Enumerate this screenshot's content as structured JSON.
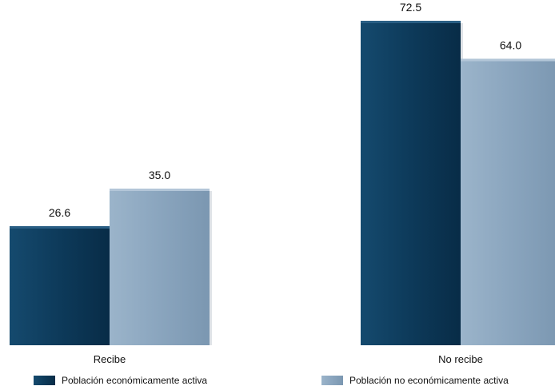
{
  "chart_data": {
    "type": "bar",
    "categories": [
      "Recibe",
      "No recibe"
    ],
    "series": [
      {
        "name": "Población económicamente activa",
        "values": [
          26.6,
          72.5
        ],
        "color": "#0d3a5a"
      },
      {
        "name": "Población no económicamente activa",
        "values": [
          35.0,
          64.0
        ],
        "color": "#8aa5be"
      }
    ],
    "value_labels": [
      [
        "26.6",
        "72.5"
      ],
      [
        "35.0",
        "64.0"
      ]
    ],
    "ylim": [
      0,
      80
    ],
    "grid": false,
    "legend": "bottom"
  }
}
